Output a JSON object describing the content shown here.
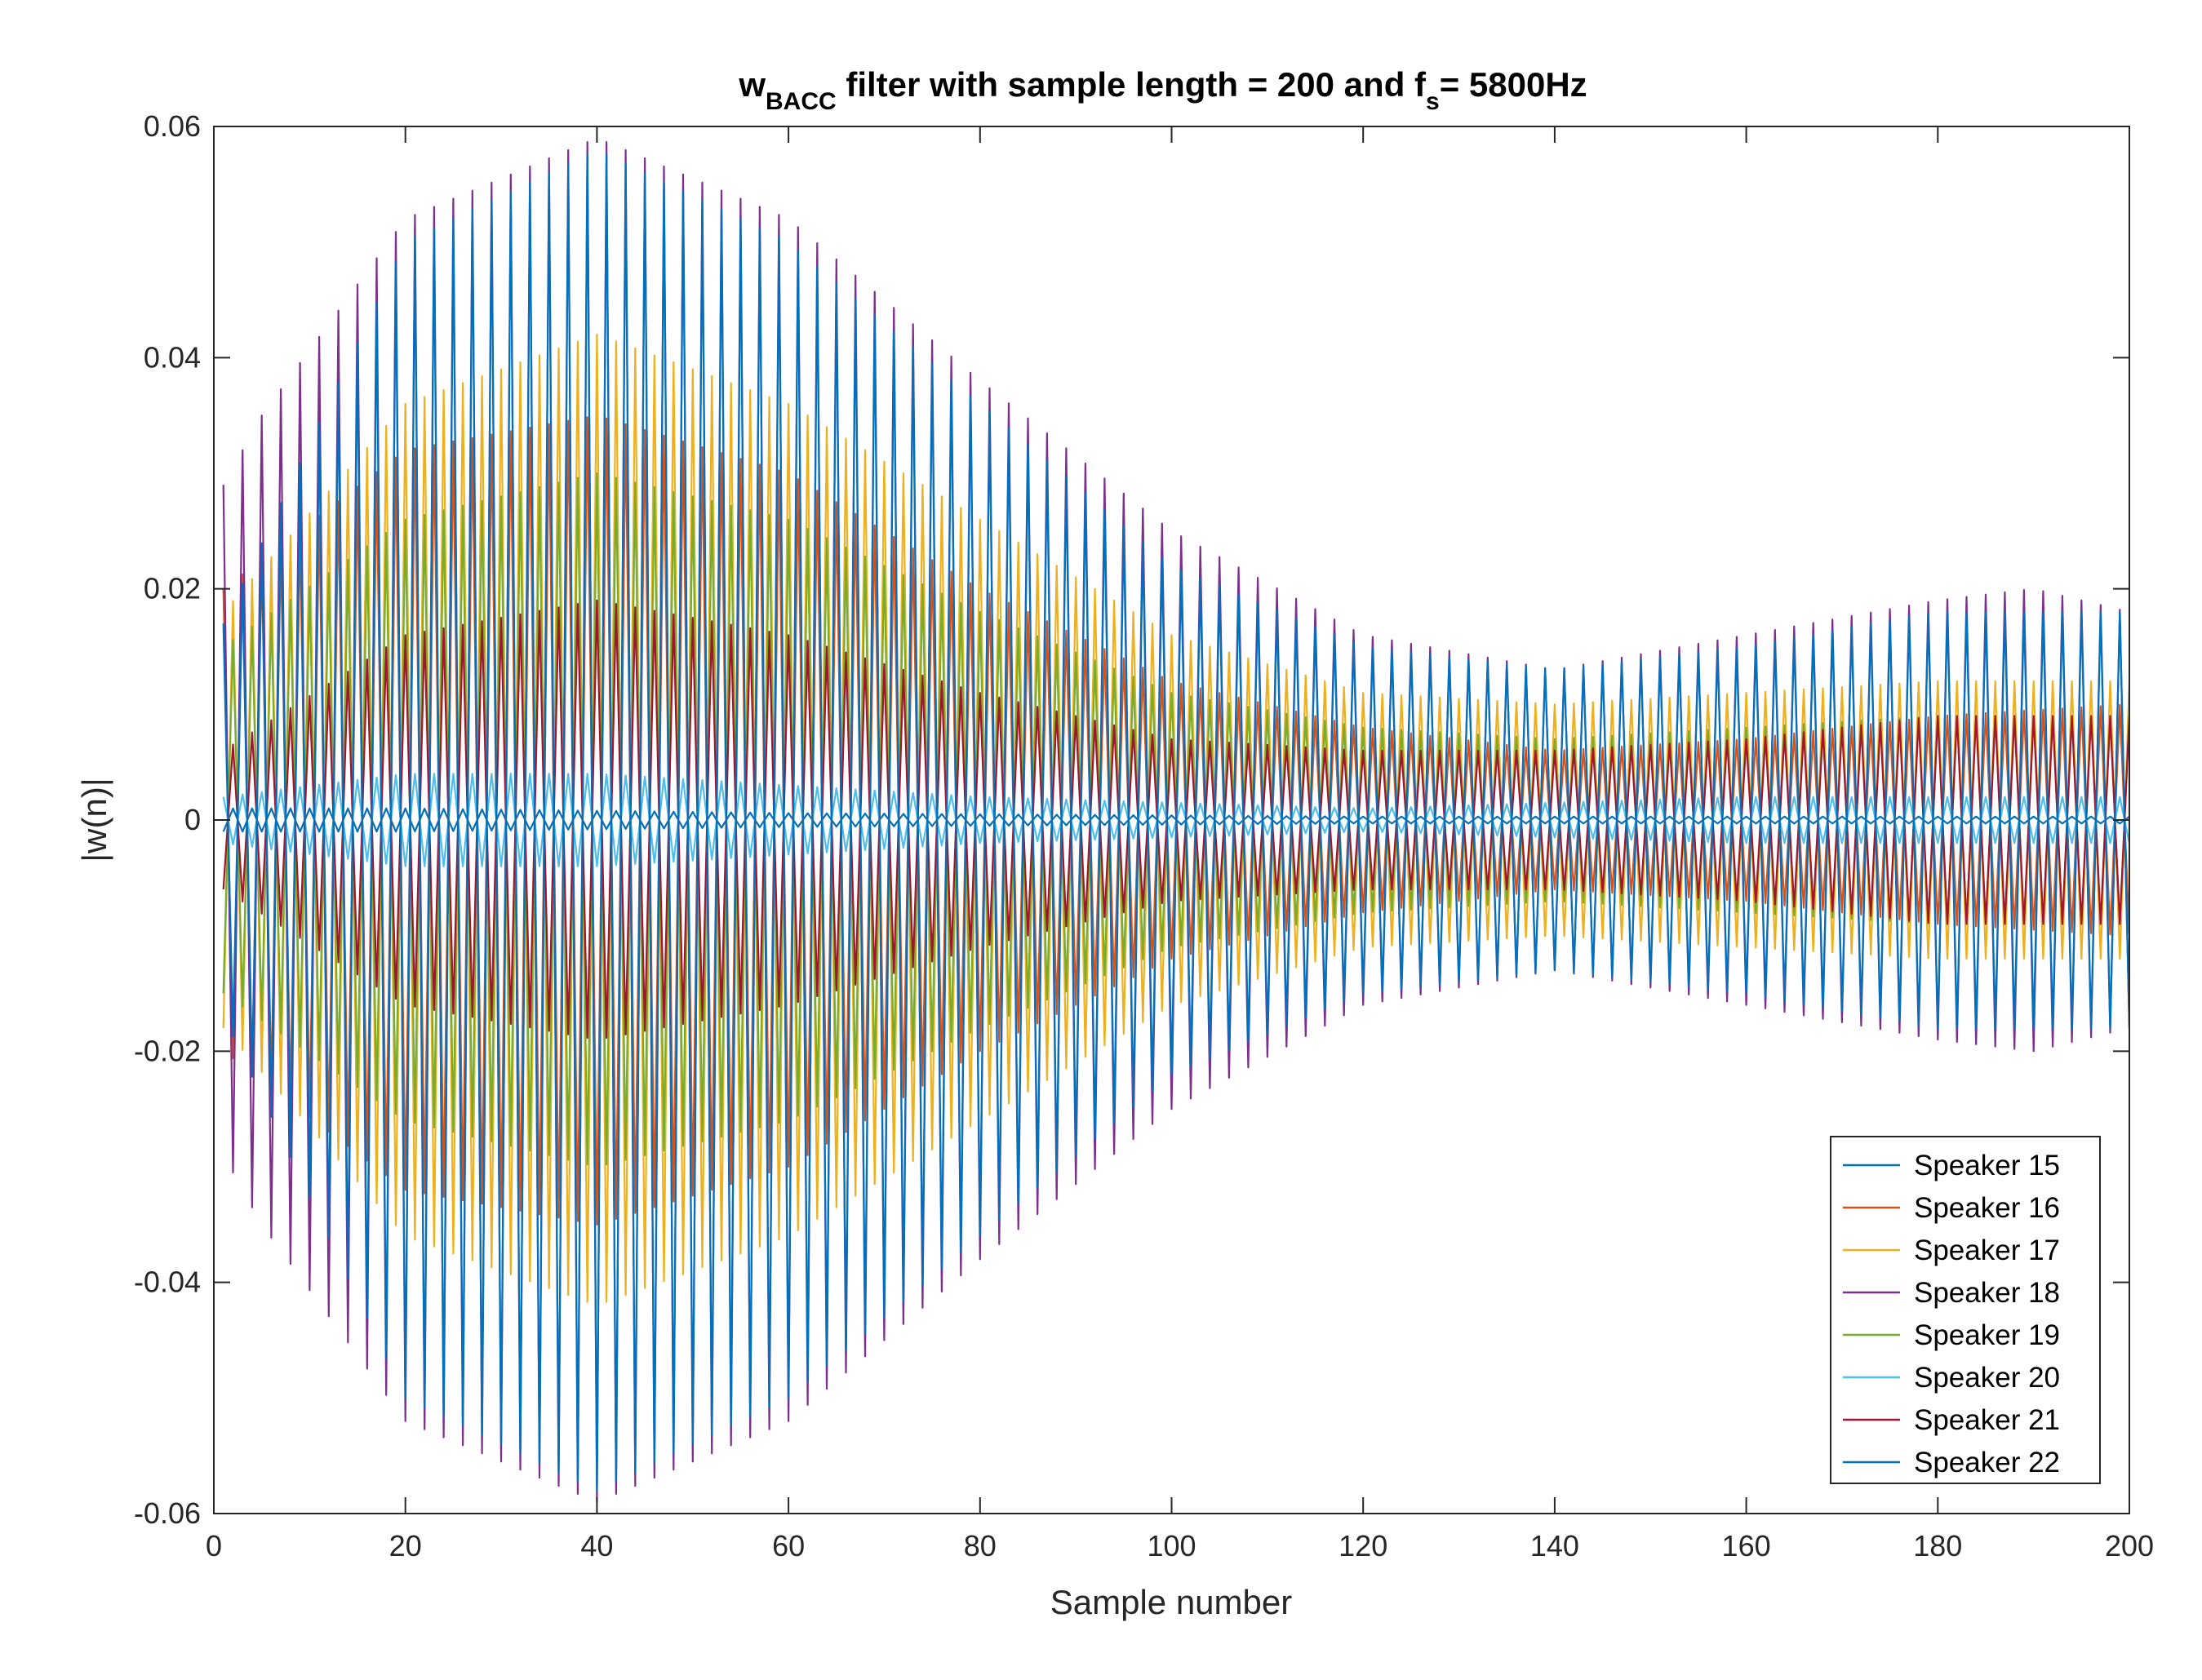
{
  "chart_data": {
    "type": "line",
    "title": {
      "prefix": "w",
      "prefix_sub": "BACC",
      "middle": " filter with sample length = 200 and f",
      "middle_sub": "s",
      "suffix": "= 5800Hz"
    },
    "xlabel": "Sample number",
    "ylabel": "|w(n)|",
    "xlim": [
      0,
      200
    ],
    "ylim": [
      -0.06,
      0.06
    ],
    "xticks": [
      0,
      20,
      40,
      60,
      80,
      100,
      120,
      140,
      160,
      180,
      200
    ],
    "xtick_labels": [
      "0",
      "20",
      "40",
      "60",
      "80",
      "100",
      "120",
      "140",
      "160",
      "180",
      "200"
    ],
    "yticks": [
      -0.06,
      -0.04,
      -0.02,
      0,
      0.02,
      0.04,
      0.06
    ],
    "ytick_labels": [
      "-0.06",
      "-0.04",
      "-0.02",
      "0",
      "0.02",
      "0.04",
      "0.06"
    ],
    "grid": false,
    "legend_position": "bottom-right",
    "x": {
      "start": 1,
      "end": 200,
      "step": 1
    },
    "series": [
      {
        "name": "Speaker 15",
        "color": "#0072BD",
        "oscillation": "alternating",
        "envelope_x": [
          1,
          20,
          40,
          60,
          80,
          100,
          120,
          140,
          160,
          180,
          200
        ],
        "envelope": [
          0.001,
          0.001,
          0.0008,
          0.0006,
          0.0005,
          0.0004,
          0.0003,
          0.0003,
          0.0003,
          0.0003,
          0.0003
        ]
      },
      {
        "name": "Speaker 16",
        "color": "#D95319",
        "oscillation": "alternating",
        "envelope_x": [
          1,
          20,
          40,
          60,
          80,
          100,
          120,
          140,
          160,
          180,
          200
        ],
        "envelope": [
          0.02,
          0.032,
          0.035,
          0.03,
          0.02,
          0.012,
          0.008,
          0.006,
          0.007,
          0.009,
          0.01
        ]
      },
      {
        "name": "Speaker 17",
        "color": "#EDB120",
        "oscillation": "alternating",
        "envelope_x": [
          1,
          20,
          40,
          60,
          80,
          100,
          120,
          140,
          160,
          180,
          200
        ],
        "envelope": [
          0.018,
          0.036,
          0.042,
          0.036,
          0.026,
          0.016,
          0.011,
          0.01,
          0.011,
          0.012,
          0.012
        ]
      },
      {
        "name": "Speaker 18",
        "color": "#7E2F8E",
        "oscillation": "alternating",
        "envelope_x": [
          1,
          5,
          20,
          40,
          60,
          80,
          100,
          120,
          140,
          160,
          180,
          190,
          200
        ],
        "envelope": [
          0.029,
          0.035,
          0.052,
          0.059,
          0.052,
          0.038,
          0.025,
          0.016,
          0.013,
          0.016,
          0.019,
          0.02,
          0.018
        ]
      },
      {
        "name": "Speaker 19",
        "color": "#77AC30",
        "oscillation": "alternating",
        "envelope_x": [
          1,
          20,
          40,
          60,
          80,
          100,
          120,
          140,
          160,
          180,
          200
        ],
        "envelope": [
          0.015,
          0.026,
          0.03,
          0.026,
          0.018,
          0.011,
          0.008,
          0.007,
          0.008,
          0.009,
          0.009
        ]
      },
      {
        "name": "Speaker 20",
        "color": "#4DBEEE",
        "oscillation": "alternating",
        "envelope_x": [
          1,
          20,
          40,
          60,
          80,
          100,
          120,
          140,
          160,
          180,
          200
        ],
        "envelope": [
          0.002,
          0.004,
          0.004,
          0.003,
          0.002,
          0.0015,
          0.001,
          0.0015,
          0.002,
          0.002,
          0.002
        ]
      },
      {
        "name": "Speaker 21",
        "color": "#A2142F",
        "oscillation": "alternating",
        "envelope_x": [
          1,
          20,
          40,
          60,
          80,
          100,
          120,
          140,
          160,
          180,
          200
        ],
        "envelope": [
          0.006,
          0.016,
          0.019,
          0.016,
          0.011,
          0.007,
          0.006,
          0.006,
          0.007,
          0.009,
          0.009
        ]
      },
      {
        "name": "Speaker 22",
        "color": "#0072BD",
        "oscillation": "alternating",
        "envelope_x": [
          1,
          20,
          40,
          60,
          80,
          100,
          120,
          140,
          160,
          180,
          200
        ],
        "envelope": [
          0.017,
          0.05,
          0.058,
          0.05,
          0.036,
          0.022,
          0.015,
          0.013,
          0.015,
          0.018,
          0.018
        ]
      }
    ]
  }
}
